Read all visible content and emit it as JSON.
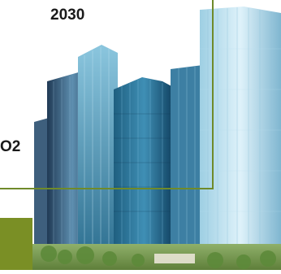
{
  "labels": {
    "year": "2030",
    "co2": "O2"
  },
  "colors": {
    "accent_green": "#7a8f25",
    "connector_line": "#6f8a2a",
    "glass_light": "#cfe8f3",
    "glass_mid": "#6fb1d0",
    "glass_dark": "#2f6f8f"
  },
  "icons": {
    "illustration": "city-skyscrapers-icon"
  }
}
